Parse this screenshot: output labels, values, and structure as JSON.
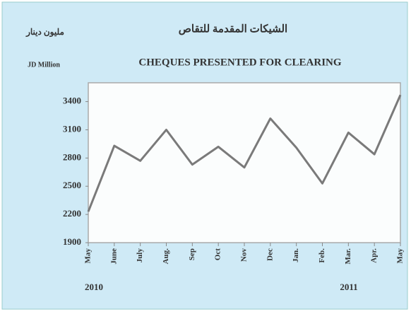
{
  "chart_data": {
    "type": "line",
    "title": "CHEQUES PRESENTED FOR CLEARING",
    "title_ar": "الشيكات المقدمة للتقاص",
    "unit_label_ar": "مليون دينار",
    "y_label": "JD Million",
    "year_labels": [
      "2010",
      "2011"
    ],
    "categories": [
      "May",
      "June",
      "July",
      "Aug.",
      "Sep",
      "Oct",
      "Nov",
      "Dec",
      "Jan.",
      "Feb.",
      "Mar.",
      "Apr.",
      "May"
    ],
    "values": [
      2230,
      2930,
      2770,
      3100,
      2730,
      2920,
      2700,
      3220,
      2910,
      2530,
      3070,
      2840,
      3470
    ],
    "color": "#7a7a7a",
    "ylim": [
      1900,
      3600
    ],
    "yticks": [
      1900,
      2200,
      2500,
      2800,
      3100,
      3400
    ]
  }
}
